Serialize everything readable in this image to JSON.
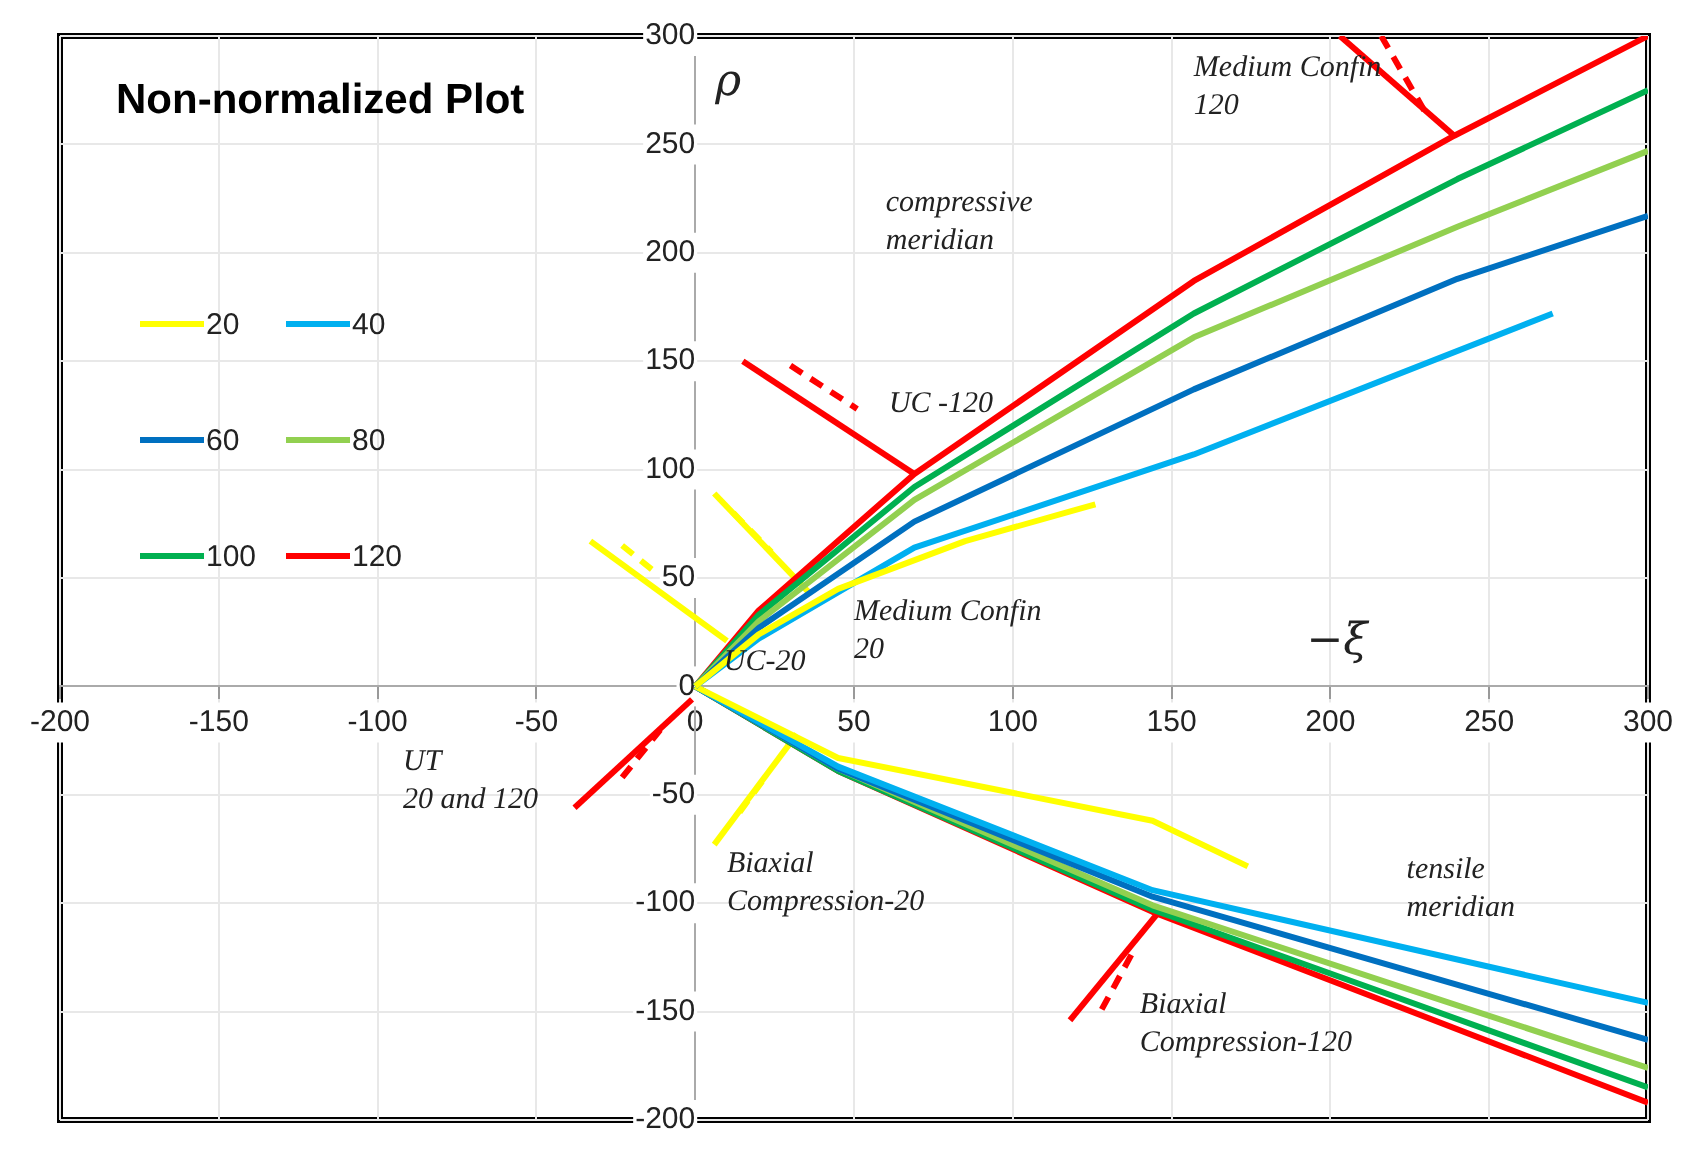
{
  "chart_data": {
    "type": "line",
    "title": "Non-normalized Plot",
    "xlabel": "−ξ",
    "ylabel": "ρ",
    "xlim": [
      -200,
      300
    ],
    "ylim": [
      -200,
      300
    ],
    "xticks": [
      -200,
      -150,
      -100,
      -50,
      0,
      50,
      100,
      150,
      200,
      250,
      300
    ],
    "yticks": [
      -200,
      -150,
      -100,
      -50,
      0,
      50,
      100,
      150,
      200,
      250,
      300
    ],
    "grid": true,
    "legend": "top left",
    "marker": "none",
    "line_style": "solid",
    "series": [
      {
        "name": "20",
        "color": "#ffff00",
        "x": [
          0,
          20,
          45,
          85,
          126
        ],
        "values": [
          0,
          24,
          45,
          67,
          84
        ]
      },
      {
        "name": "40",
        "color": "#00b0f0",
        "x": [
          0,
          20,
          69,
          157,
          270
        ],
        "values": [
          0,
          22,
          64,
          107,
          172
        ]
      },
      {
        "name": "60",
        "color": "#0070c0",
        "x": [
          0,
          20,
          69,
          157,
          240,
          300
        ],
        "values": [
          0,
          27,
          76,
          137,
          188,
          217
        ]
      },
      {
        "name": "80",
        "color": "#92d050",
        "x": [
          0,
          20,
          69,
          157,
          240,
          300
        ],
        "values": [
          0,
          30,
          86,
          161,
          212,
          247
        ]
      },
      {
        "name": "100",
        "color": "#00b050",
        "x": [
          0,
          20,
          69,
          157,
          240,
          300
        ],
        "values": [
          0,
          33,
          92,
          172,
          234,
          275
        ]
      },
      {
        "name": "120",
        "color": "#ff0000",
        "x": [
          0,
          20,
          69,
          157,
          239,
          300
        ],
        "values": [
          0,
          35,
          98,
          187,
          254,
          300
        ]
      },
      {
        "color": "#ffff00",
        "x": [
          0,
          45,
          144,
          174
        ],
        "values": [
          0,
          -33,
          -62,
          -83
        ]
      },
      {
        "color": "#00b0f0",
        "x": [
          0,
          45,
          144,
          300
        ],
        "values": [
          0,
          -37,
          -94,
          -146
        ]
      },
      {
        "color": "#0070c0",
        "x": [
          0,
          45,
          144,
          300
        ],
        "values": [
          0,
          -38,
          -97,
          -163
        ]
      },
      {
        "color": "#92d050",
        "x": [
          0,
          45,
          144,
          300
        ],
        "values": [
          0,
          -38,
          -101,
          -176
        ]
      },
      {
        "color": "#00b050",
        "x": [
          0,
          45,
          144,
          300
        ],
        "values": [
          0,
          -39,
          -103,
          -185
        ]
      },
      {
        "color": "#ff0000",
        "x": [
          0,
          45,
          144,
          300
        ],
        "values": [
          0,
          -39,
          -104,
          -192
        ]
      },
      {
        "color": "#ff0000",
        "x": [
          15,
          69
        ],
        "values": [
          150,
          98
        ]
      },
      {
        "color": "#ff0000",
        "x": [
          30,
          51
        ],
        "values": [
          148,
          128
        ],
        "line_style": "dashed"
      },
      {
        "color": "#ff0000",
        "x": [
          203,
          239
        ],
        "values": [
          300,
          254
        ]
      },
      {
        "color": "#ff0000",
        "x": [
          216,
          231
        ],
        "values": [
          300,
          262
        ],
        "line_style": "dashed"
      },
      {
        "color": "#ff0000",
        "x": [
          -38,
          -1
        ],
        "values": [
          -56,
          -6
        ]
      },
      {
        "color": "#ff0000",
        "x": [
          -23,
          -11
        ],
        "values": [
          -42,
          -20
        ],
        "line_style": "dashed"
      },
      {
        "color": "#ff0000",
        "x": [
          118,
          146
        ],
        "values": [
          -154,
          -104
        ]
      },
      {
        "color": "#ff0000",
        "x": [
          128,
          138
        ],
        "values": [
          -149,
          -122
        ],
        "line_style": "dashed"
      },
      {
        "color": "#ffff00",
        "x": [
          -33,
          10
        ],
        "values": [
          67,
          21
        ]
      },
      {
        "color": "#ffff00",
        "x": [
          -23,
          -12
        ],
        "values": [
          65,
          52
        ],
        "line_style": "dashed"
      },
      {
        "color": "#ffff00",
        "x": [
          6,
          36
        ],
        "values": [
          89,
          43
        ]
      },
      {
        "color": "#ffff00",
        "x": [
          12,
          24
        ],
        "values": [
          80,
          62
        ],
        "line_style": "dashed"
      },
      {
        "color": "#ffff00",
        "x": [
          6,
          32
        ],
        "values": [
          -73,
          -22
        ]
      },
      {
        "color": "#ffff00",
        "x": [
          14,
          22
        ],
        "values": [
          -58,
          -42
        ],
        "line_style": "dashed"
      }
    ],
    "annotations": [
      "Medium Confin\n120",
      "compressive\nmeridian",
      "UC -120",
      "Medium Confin\n20",
      "UC-20",
      "UT\n20 and 120",
      "Biaxial\nCompression-20",
      "tensile\nmeridian",
      "Biaxial\nCompression-120"
    ]
  }
}
